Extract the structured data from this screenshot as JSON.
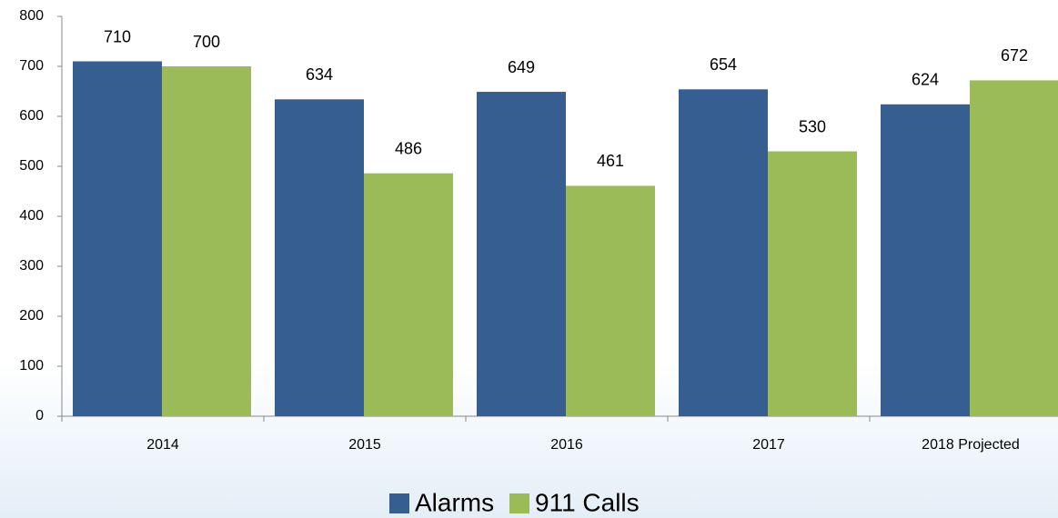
{
  "chart_data": {
    "type": "bar",
    "categories": [
      "2014",
      "2015",
      "2016",
      "2017",
      "2018 Projected"
    ],
    "series": [
      {
        "name": "Alarms",
        "color": "#375e91",
        "values": [
          710,
          634,
          649,
          654,
          624
        ]
      },
      {
        "name": "911 Calls",
        "color": "#9bbb59",
        "values": [
          700,
          486,
          461,
          530,
          672
        ]
      }
    ],
    "ylim": [
      0,
      800
    ],
    "yticks": [
      0,
      100,
      200,
      300,
      400,
      500,
      600,
      700,
      800
    ],
    "legend": "bottom"
  }
}
